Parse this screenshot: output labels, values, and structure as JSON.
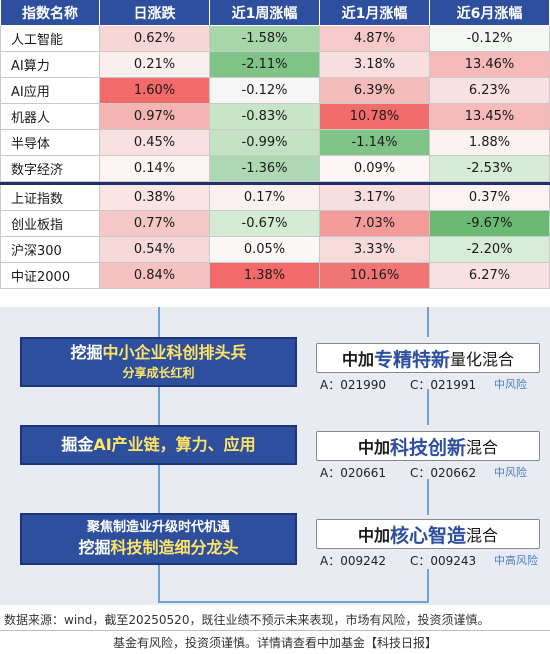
{
  "table": {
    "headers": [
      "指数名称",
      "日涨跌",
      "近1周涨幅",
      "近1月涨幅",
      "近6月涨幅"
    ],
    "group1": [
      {
        "name": "人工智能",
        "d": "0.62%",
        "w": "-1.58%",
        "m": "4.87%",
        "h": "-0.12%",
        "colors": [
          "#f7d6d6",
          "#a8d6ab",
          "#f6caca",
          "#f4f7f4"
        ]
      },
      {
        "name": "AI算力",
        "d": "0.21%",
        "w": "-2.11%",
        "m": "3.18%",
        "h": "13.46%",
        "colors": [
          "#fbeeee",
          "#7fc486",
          "#f8dede",
          "#f7baba"
        ]
      },
      {
        "name": "AI应用",
        "d": "1.60%",
        "w": "-0.12%",
        "m": "6.39%",
        "h": "6.23%",
        "colors": [
          "#f26a6a",
          "#f6f6f6",
          "#f5bcbc",
          "#f9e1e1"
        ]
      },
      {
        "name": "机器人",
        "d": "0.97%",
        "w": "-0.83%",
        "m": "10.78%",
        "h": "13.45%",
        "colors": [
          "#f4b4b4",
          "#c8e5c8",
          "#f26c6c",
          "#f7baba"
        ]
      },
      {
        "name": "半导体",
        "d": "0.45%",
        "w": "-0.99%",
        "m": "-1.14%",
        "h": "1.88%",
        "colors": [
          "#f9e1e1",
          "#c2e2c3",
          "#7fc486",
          "#fcf2f2"
        ]
      },
      {
        "name": "数字经济",
        "d": "0.14%",
        "w": "-1.36%",
        "m": "0.09%",
        "h": "-2.53%",
        "colors": [
          "#fdf4f4",
          "#aed8b1",
          "#fcf6f6",
          "#d6ecd6"
        ]
      }
    ],
    "group2": [
      {
        "name": "上证指数",
        "d": "0.38%",
        "w": "0.17%",
        "m": "3.17%",
        "h": "0.37%",
        "colors": [
          "#fae4e4",
          "#fdf0f0",
          "#f8dede",
          "#fdf3f3"
        ]
      },
      {
        "name": "创业板指",
        "d": "0.77%",
        "w": "-0.67%",
        "m": "7.03%",
        "h": "-9.67%",
        "colors": [
          "#f6c7c7",
          "#d4ebd4",
          "#f39b9b",
          "#6bba73"
        ]
      },
      {
        "name": "沪深300",
        "d": "0.54%",
        "w": "0.05%",
        "m": "3.33%",
        "h": "-2.20%",
        "colors": [
          "#f8d9d9",
          "#fdf8f8",
          "#f8dcdc",
          "#d8edd8"
        ]
      },
      {
        "name": "中证2000",
        "d": "0.84%",
        "w": "1.38%",
        "m": "10.16%",
        "h": "6.27%",
        "colors": [
          "#f5c1c1",
          "#f26a6a",
          "#f27575",
          "#f9e1e1"
        ]
      }
    ]
  },
  "themes": [
    {
      "line1_pre": "挖掘",
      "line1_hl": "中小企业科创排头兵",
      "line1_post": "",
      "line2": "分享成长红利"
    },
    {
      "line1_pre": "掘金",
      "line1_hl": "AI产业链，算力、应用",
      "line1_post": "",
      "line2": ""
    },
    {
      "line1_pre": "",
      "line1_hl": "",
      "line1_post": "",
      "line0": "聚焦制造业升级时代机遇",
      "line2_pre": "挖掘",
      "line2_hl": "科技制造细分龙头"
    }
  ],
  "funds": [
    {
      "pre": "中加",
      "hl": "专精特新",
      "post": "量化混合",
      "a_code": "A：021990",
      "c_code": "C：021991",
      "risk": "中风险"
    },
    {
      "pre": "中加",
      "hl": "科技创新",
      "post": "混合",
      "a_code": "A：020661",
      "c_code": "C：020662",
      "risk": "中风险"
    },
    {
      "pre": "中加",
      "hl": "核心智造",
      "post": "混合",
      "a_code": "A：009242",
      "c_code": "C：009243",
      "risk": "中高风险"
    }
  ],
  "footer": {
    "line1": "数据来源：wind，截至20250520，既往业绩不预示未来表现，市场有风险，投资须谨慎。",
    "line2": "基金有风险，投资须谨慎。详情请查看中加基金【科技日报】"
  }
}
